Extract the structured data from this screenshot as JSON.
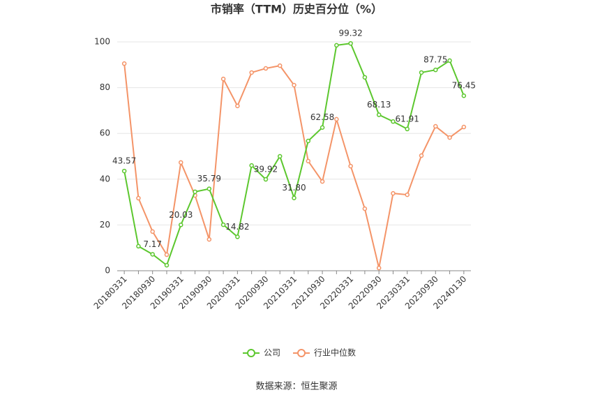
{
  "chart_data": {
    "type": "line",
    "title": "市销率（TTM）历史百分位（%）",
    "source": "数据来源：恒生聚源",
    "categories": [
      "20180331",
      null,
      "20180930",
      null,
      "20190331",
      null,
      "20190930",
      null,
      "20200331",
      null,
      "20200930",
      null,
      "20210331",
      null,
      "20210930",
      null,
      "20220331",
      null,
      "20220930",
      null,
      "20230331",
      null,
      "20230930",
      null,
      "20240130"
    ],
    "series": [
      {
        "name": "公司",
        "color": "#5cc72e",
        "values": [
          43.57,
          10.7,
          7.17,
          2.4,
          20.03,
          34.5,
          35.79,
          20.1,
          14.82,
          46,
          39.92,
          50,
          31.8,
          56.7,
          62.58,
          98.5,
          99.32,
          84.5,
          68.13,
          65.2,
          61.91,
          86.6,
          87.75,
          91.8,
          76.45
        ],
        "value_labels": [
          "43.57",
          null,
          "7.17",
          null,
          "20.03",
          null,
          "35.79",
          null,
          "14.82",
          null,
          "39.92",
          null,
          "31.80",
          null,
          "62.58",
          null,
          "99.32",
          null,
          "68.13",
          null,
          "61.91",
          null,
          "87.75",
          null,
          "76.45"
        ]
      },
      {
        "name": "行业中位数",
        "color": "#f49468",
        "values": [
          90.5,
          31.7,
          17.1,
          7,
          47.3,
          32.9,
          13.7,
          83.8,
          72,
          86.6,
          88.4,
          89.6,
          81.1,
          47.9,
          39,
          66.2,
          45.7,
          27.1,
          1.2,
          33.8,
          33.2,
          50.3,
          63.1,
          58.2,
          62.8
        ]
      }
    ],
    "ylim": [
      0,
      100
    ],
    "yticks": [
      0,
      20,
      40,
      60,
      80,
      100
    ],
    "grid": true,
    "legend": "bottom"
  }
}
